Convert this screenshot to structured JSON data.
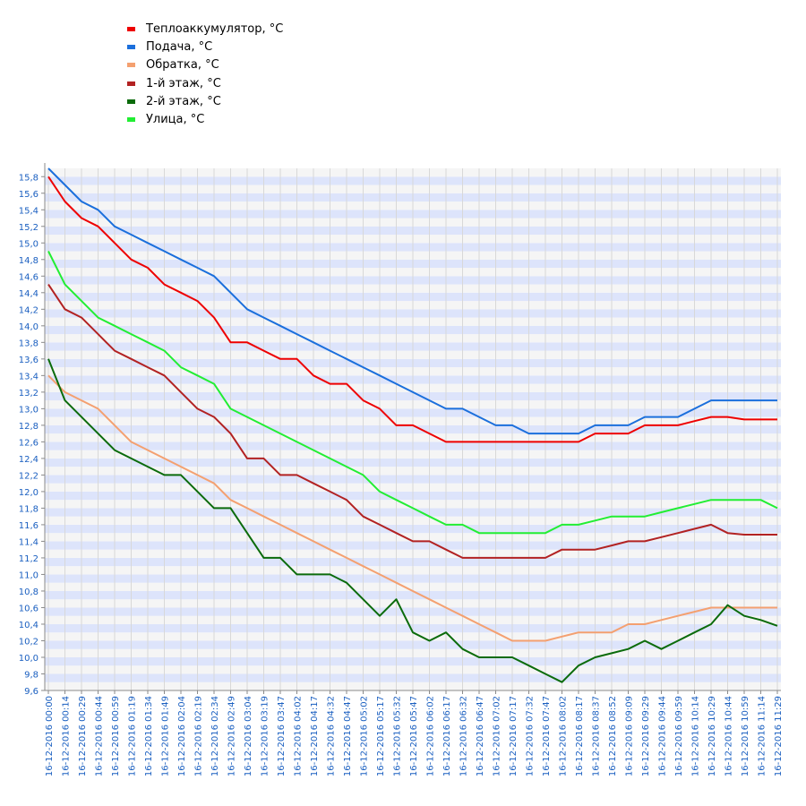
{
  "chart_data": {
    "type": "line",
    "title": "",
    "xlabel": "",
    "ylabel": "",
    "ylim": [
      9.6,
      15.9
    ],
    "yticks": [
      "9,6",
      "9,8",
      "10,0",
      "10,2",
      "10,4",
      "10,6",
      "10,8",
      "11,0",
      "11,2",
      "11,4",
      "11,6",
      "11,8",
      "12,0",
      "12,2",
      "12,4",
      "12,6",
      "12,8",
      "13,0",
      "13,2",
      "13,4",
      "13,6",
      "13,8",
      "14,0",
      "14,2",
      "14,4",
      "14,6",
      "14,8",
      "15,0",
      "15,2",
      "15,4",
      "15,6",
      "15,8"
    ],
    "x": [
      "16-12-2016 00:00",
      "16-12-2016 00:14",
      "16-12-2016 00:29",
      "16-12-2016 00:44",
      "16-12-2016 00:59",
      "16-12-2016 01:19",
      "16-12-2016 01:34",
      "16-12-2016 01:49",
      "16-12-2016 02:04",
      "16-12-2016 02:19",
      "16-12-2016 02:34",
      "16-12-2016 02:49",
      "16-12-2016 03:04",
      "16-12-2016 03:19",
      "16-12-2016 03:47",
      "16-12-2016 04:02",
      "16-12-2016 04:17",
      "16-12-2016 04:32",
      "16-12-2016 04:47",
      "16-12-2016 05:02",
      "16-12-2016 05:17",
      "16-12-2016 05:32",
      "16-12-2016 05:47",
      "16-12-2016 06:02",
      "16-12-2016 06:17",
      "16-12-2016 06:32",
      "16-12-2016 06:47",
      "16-12-2016 07:02",
      "16-12-2016 07:17",
      "16-12-2016 07:32",
      "16-12-2016 07:47",
      "16-12-2016 08:02",
      "16-12-2016 08:17",
      "16-12-2016 08:37",
      "16-12-2016 08:52",
      "16-12-2016 09:09",
      "16-12-2016 09:29",
      "16-12-2016 09:44",
      "16-12-2016 09:59",
      "16-12-2016 10:14",
      "16-12-2016 10:29",
      "16-12-2016 10:44",
      "16-12-2016 10:59",
      "16-12-2016 11:14",
      "16-12-2016 11:29"
    ],
    "grid": true,
    "legend_position": "top-left",
    "series": [
      {
        "name": "Теплоаккумулятор, °C",
        "color": "#ee0000",
        "values": [
          15.8,
          15.5,
          15.3,
          15.2,
          15.0,
          14.8,
          14.7,
          14.5,
          14.4,
          14.3,
          14.1,
          13.8,
          13.8,
          13.7,
          13.6,
          13.6,
          13.4,
          13.3,
          13.3,
          13.1,
          13.0,
          12.8,
          12.8,
          12.7,
          12.6,
          12.6,
          12.6,
          12.6,
          12.6,
          12.6,
          12.6,
          12.6,
          12.6,
          12.7,
          12.7,
          12.7,
          12.8,
          12.8,
          12.8,
          12.85,
          12.9,
          12.9,
          12.87,
          12.87,
          12.87
        ]
      },
      {
        "name": "Подача, °C",
        "color": "#1b6fdc",
        "values": [
          15.9,
          15.7,
          15.5,
          15.4,
          15.2,
          15.1,
          15.0,
          14.9,
          14.8,
          14.7,
          14.6,
          14.4,
          14.2,
          14.1,
          14.0,
          13.9,
          13.8,
          13.7,
          13.6,
          13.5,
          13.4,
          13.3,
          13.2,
          13.1,
          13.0,
          13.0,
          12.9,
          12.8,
          12.8,
          12.7,
          12.7,
          12.7,
          12.7,
          12.8,
          12.8,
          12.8,
          12.9,
          12.9,
          12.9,
          13.0,
          13.1,
          13.1,
          13.1,
          13.1,
          13.1
        ]
      },
      {
        "name": "Обратка, °C",
        "color": "#f4a070",
        "values": [
          13.4,
          13.2,
          13.1,
          13.0,
          12.8,
          12.6,
          12.5,
          12.4,
          12.3,
          12.2,
          12.1,
          11.9,
          11.8,
          11.7,
          11.6,
          11.5,
          11.4,
          11.3,
          11.2,
          11.1,
          11.0,
          10.9,
          10.8,
          10.7,
          10.6,
          10.5,
          10.4,
          10.3,
          10.2,
          10.2,
          10.2,
          10.25,
          10.3,
          10.3,
          10.3,
          10.4,
          10.4,
          10.45,
          10.5,
          10.55,
          10.6,
          10.6,
          10.6,
          10.6,
          10.6
        ]
      },
      {
        "name": "1-й этаж, °C",
        "color": "#b22222",
        "values": [
          14.5,
          14.2,
          14.1,
          13.9,
          13.7,
          13.6,
          13.5,
          13.4,
          13.2,
          13.0,
          12.9,
          12.7,
          12.4,
          12.4,
          12.2,
          12.2,
          12.1,
          12.0,
          11.9,
          11.7,
          11.6,
          11.5,
          11.4,
          11.4,
          11.3,
          11.2,
          11.2,
          11.2,
          11.2,
          11.2,
          11.2,
          11.3,
          11.3,
          11.3,
          11.35,
          11.4,
          11.4,
          11.45,
          11.5,
          11.55,
          11.6,
          11.5,
          11.48,
          11.48,
          11.48
        ]
      },
      {
        "name": "2-й этаж, °C",
        "color": "#0b6b0b",
        "values": [
          13.6,
          13.1,
          12.9,
          12.7,
          12.5,
          12.4,
          12.3,
          12.2,
          12.2,
          12.0,
          11.8,
          11.8,
          11.5,
          11.2,
          11.2,
          11.0,
          11.0,
          11.0,
          10.9,
          10.7,
          10.5,
          10.7,
          10.3,
          10.2,
          10.3,
          10.1,
          10.0,
          10.0,
          10.0,
          9.9,
          9.8,
          9.7,
          9.9,
          10.0,
          10.05,
          10.1,
          10.2,
          10.1,
          10.2,
          10.3,
          10.4,
          10.63,
          10.5,
          10.45,
          10.38
        ]
      },
      {
        "name": "Улица, °C",
        "color": "#22ee33",
        "values": [
          14.9,
          14.5,
          14.3,
          14.1,
          14.0,
          13.9,
          13.8,
          13.7,
          13.5,
          13.4,
          13.3,
          13.0,
          12.9,
          12.8,
          12.7,
          12.6,
          12.5,
          12.4,
          12.3,
          12.2,
          12.0,
          11.9,
          11.8,
          11.7,
          11.6,
          11.6,
          11.5,
          11.5,
          11.5,
          11.5,
          11.5,
          11.6,
          11.6,
          11.65,
          11.7,
          11.7,
          11.7,
          11.75,
          11.8,
          11.85,
          11.9,
          11.9,
          11.9,
          11.9,
          11.8
        ]
      }
    ]
  }
}
